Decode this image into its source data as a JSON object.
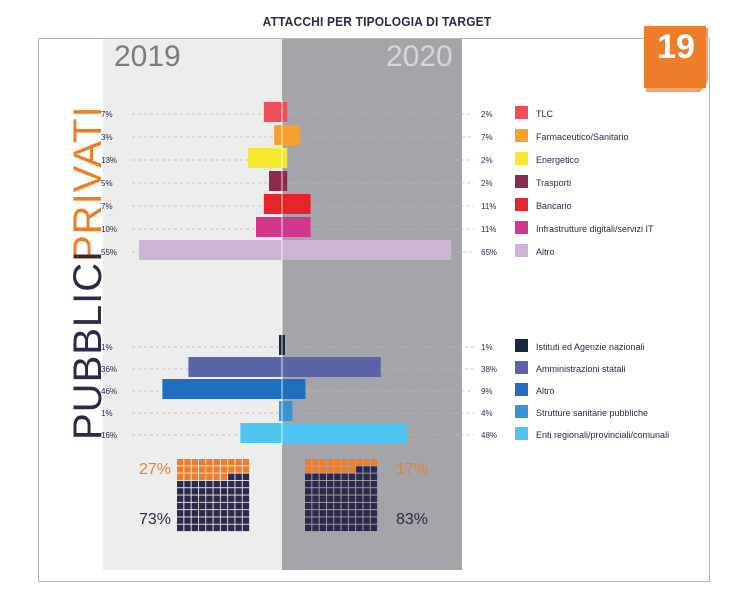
{
  "page": {
    "title": "ATTACCHI PER TIPOLOGIA DI TARGET",
    "badge": "19",
    "year_left": "2019",
    "year_right": "2020",
    "section_privati": "PRIVATI",
    "section_pubblici": "PUBBLICI",
    "colors": {
      "accent": "#ee7d2a",
      "navy": "#2b2a4c",
      "panel_right": "#a4a5a9",
      "panel_left": "#ececec"
    }
  },
  "chart_data": {
    "type": "bar",
    "layout": "butterfly",
    "groups": [
      {
        "name": "PRIVATI",
        "categories": [
          {
            "label": "TLC",
            "v2019": 7,
            "v2020": 2,
            "label2019": "7%",
            "label2020": "2%",
            "color": "#ee4f5b"
          },
          {
            "label": "Farmaceutico/Sanitario",
            "v2019": 3,
            "v2020": 7,
            "label2019": "3%",
            "label2020": "7%",
            "color": "#f6a12b"
          },
          {
            "label": "Energetico",
            "v2019": 13,
            "v2020": 2,
            "label2019": "13%",
            "label2020": "2%",
            "color": "#f6e82e"
          },
          {
            "label": "Trasporti",
            "v2019": 5,
            "v2020": 2,
            "label2019": "5%",
            "label2020": "2%",
            "color": "#8b2c4b"
          },
          {
            "label": "Bancario",
            "v2019": 7,
            "v2020": 11,
            "label2019": "7%",
            "label2020": "11%",
            "color": "#e5232a"
          },
          {
            "label": "Infrastrutture digitali/servizi IT",
            "v2019": 10,
            "v2020": 11,
            "label2019": "10%",
            "label2020": "11%",
            "color": "#d2378f"
          },
          {
            "label": "Altro",
            "v2019": 55,
            "v2020": 65,
            "label2019": "55%",
            "label2020": "65%",
            "color": "#cfb3d6"
          }
        ]
      },
      {
        "name": "PUBBLICI",
        "categories": [
          {
            "label": "Istituti ed Agenzie nazionali",
            "v2019": 1,
            "v2020": 1,
            "label2019": "1%",
            "label2020": "1%",
            "color": "#1a2740"
          },
          {
            "label": "Amministrazioni statali",
            "v2019": 36,
            "v2020": 38,
            "label2019": "36%",
            "label2020": "38%",
            "color": "#5b64a5"
          },
          {
            "label": "Altro",
            "v2019": 46,
            "v2020": 9,
            "label2019": "46%",
            "label2020": "9%",
            "color": "#1f6fbe"
          },
          {
            "label": "Strutture sanitarie pubbliche",
            "v2019": 1,
            "v2020": 4,
            "label2019": "1%",
            "label2020": "4%",
            "color": "#3596d3"
          },
          {
            "label": "Enti regionali/provinciali/comunali",
            "v2019": 16,
            "v2020": 48,
            "label2019": "16%",
            "label2020": "48%",
            "color": "#4ec6ef"
          }
        ]
      }
    ],
    "waffle": {
      "2019": {
        "privati": 27,
        "pubblici": 73,
        "privati_label": "27%",
        "pubblici_label": "73%"
      },
      "2020": {
        "privati": 17,
        "pubblici": 83,
        "privati_label": "17%",
        "pubblici_label": "83%"
      },
      "colors": {
        "privati": "#ee7d2a",
        "pubblici": "#2b2a4c"
      }
    }
  }
}
